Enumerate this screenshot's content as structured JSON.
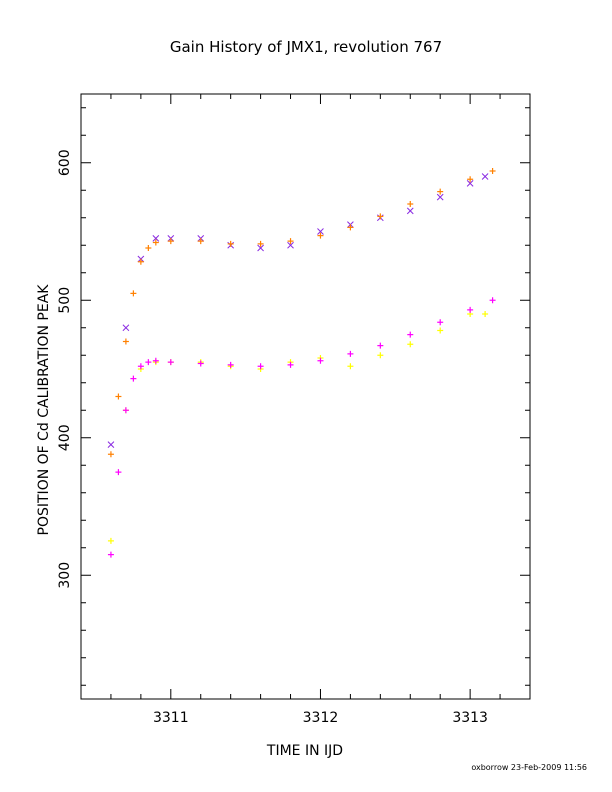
{
  "chart_data": {
    "type": "scatter",
    "title": "Gain History of JMX1, revolution 767",
    "xlabel": "TIME IN IJD",
    "ylabel": "POSITION OF Cd CALIBRATION PEAK",
    "xlim": [
      3310.4,
      3313.4
    ],
    "ylim": [
      210,
      650
    ],
    "xticks": [
      3311,
      3312,
      3313
    ],
    "yticks": [
      300,
      400,
      500,
      600
    ],
    "grid": false,
    "legend": "none",
    "footer": "oxborrow 23-Feb-2009 11:56",
    "colors": {
      "upper_points": "#8a2be2",
      "upper_fit": "#ff8000",
      "lower_points": "#ffff00",
      "lower_fit": "#ff00ff"
    },
    "series": [
      {
        "marker": "x",
        "color": "#8a2be2",
        "x": [
          3310.6,
          3310.7,
          3310.8,
          3310.9,
          3311.0,
          3311.2,
          3311.4,
          3311.6,
          3311.8,
          3312.0,
          3312.2,
          3312.4,
          3312.6,
          3312.8,
          3313.0,
          3313.1
        ],
        "y": [
          395,
          480,
          530,
          545,
          545,
          545,
          540,
          538,
          540,
          550,
          555,
          560,
          565,
          575,
          585,
          590
        ]
      },
      {
        "marker": "+",
        "color": "#ff8000",
        "x": [
          3310.6,
          3310.65,
          3310.7,
          3310.75,
          3310.8,
          3310.85,
          3310.9,
          3311.0,
          3311.2,
          3311.4,
          3311.6,
          3311.8,
          3312.0,
          3312.2,
          3312.4,
          3312.6,
          3312.8,
          3313.0,
          3313.15
        ],
        "y": [
          388,
          430,
          470,
          505,
          528,
          538,
          542,
          543,
          543,
          541,
          541,
          543,
          547,
          553,
          561,
          570,
          579,
          588,
          594
        ]
      },
      {
        "marker": "+",
        "color": "#ffff00",
        "x": [
          3310.6,
          3310.7,
          3310.8,
          3310.9,
          3311.0,
          3311.2,
          3311.4,
          3311.6,
          3311.8,
          3312.0,
          3312.2,
          3312.4,
          3312.6,
          3312.8,
          3313.0,
          3313.1
        ],
        "y": [
          325,
          420,
          450,
          455,
          455,
          455,
          452,
          450,
          455,
          458,
          452,
          460,
          468,
          478,
          490,
          490
        ]
      },
      {
        "marker": "+",
        "color": "#ff00ff",
        "x": [
          3310.6,
          3310.65,
          3310.7,
          3310.75,
          3310.8,
          3310.85,
          3310.9,
          3311.0,
          3311.2,
          3311.4,
          3311.6,
          3311.8,
          3312.0,
          3312.2,
          3312.4,
          3312.6,
          3312.8,
          3313.0,
          3313.15
        ],
        "y": [
          315,
          375,
          420,
          443,
          452,
          455,
          456,
          455,
          454,
          453,
          452,
          453,
          456,
          461,
          467,
          475,
          484,
          493,
          500
        ]
      }
    ]
  }
}
